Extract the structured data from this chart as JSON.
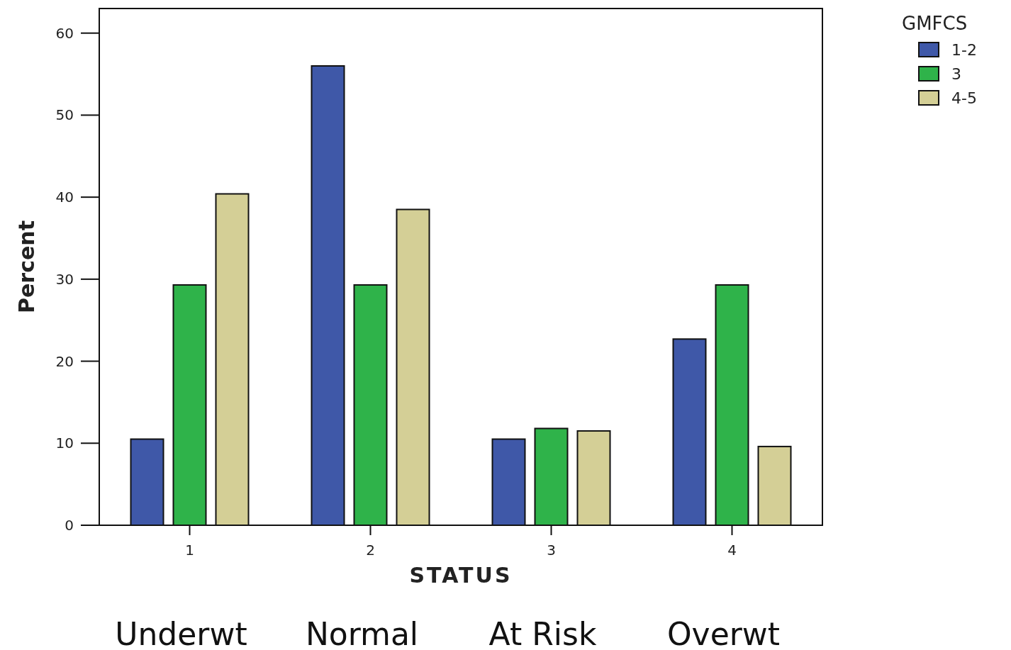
{
  "chart_data": {
    "type": "bar",
    "xlabel": "STATUS",
    "ylabel": "Percent",
    "legend_title": "GMFCS",
    "categories": [
      "1",
      "2",
      "3",
      "4"
    ],
    "series": [
      {
        "name": "1-2",
        "color": "#3f58a8",
        "values": [
          10.5,
          56.0,
          10.5,
          22.7
        ]
      },
      {
        "name": "3",
        "color": "#2fb34a",
        "values": [
          29.3,
          29.3,
          11.8,
          29.3
        ]
      },
      {
        "name": "4-5",
        "color": "#d4cf96",
        "values": [
          40.4,
          38.5,
          11.5,
          9.6
        ]
      }
    ],
    "ylim": [
      0,
      63
    ],
    "yticks": [
      0,
      10,
      20,
      30,
      40,
      50,
      60
    ],
    "grid": false,
    "legend": "top right",
    "annotations": [
      "Underwt",
      "Normal",
      "At Risk",
      "Overwt"
    ]
  }
}
